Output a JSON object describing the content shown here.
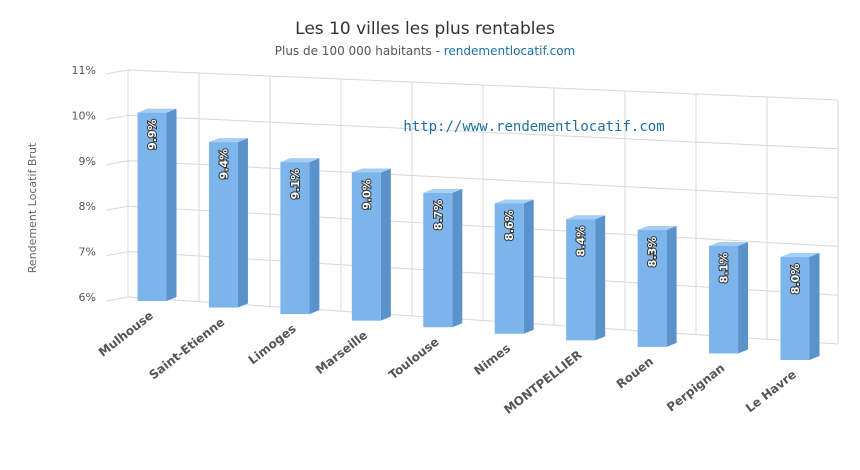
{
  "chart_data": {
    "type": "bar",
    "title": "Les 10 villes les plus rentables",
    "subtitle_prefix": "Plus de 100 000 habitants - ",
    "subtitle_link": "rendementlocatif.com",
    "annotation": "http://www.rendementlocatif.com",
    "ylabel": "Rendement Locatif Brut",
    "xlabel": "",
    "categories": [
      "Mulhouse",
      "Saint-Etienne",
      "Limoges",
      "Marseille",
      "Toulouse",
      "Nimes",
      "MONTPELLIER",
      "Rouen",
      "Perpignan",
      "Le Havre"
    ],
    "values": [
      9.9,
      9.4,
      9.1,
      9.0,
      8.7,
      8.6,
      8.4,
      8.3,
      8.1,
      8.0
    ],
    "data_labels": [
      "9.9%",
      "9.4%",
      "9.1%",
      "9.0%",
      "8.7%",
      "8.6%",
      "8.4%",
      "8.3%",
      "8.1%",
      "8.0%"
    ],
    "yticks": [
      6,
      7,
      8,
      9,
      10,
      11
    ],
    "ytick_labels": [
      "6%",
      "7%",
      "8%",
      "9%",
      "10%",
      "11%"
    ],
    "ylim": [
      6,
      11
    ],
    "grid": true,
    "legend": "none",
    "style": "3d-perspective",
    "colors": {
      "bar_front": "#7cb5ec",
      "bar_side": "#5a92cc",
      "bar_top": "#a6cef2",
      "grid": "#d8d8d8"
    }
  }
}
